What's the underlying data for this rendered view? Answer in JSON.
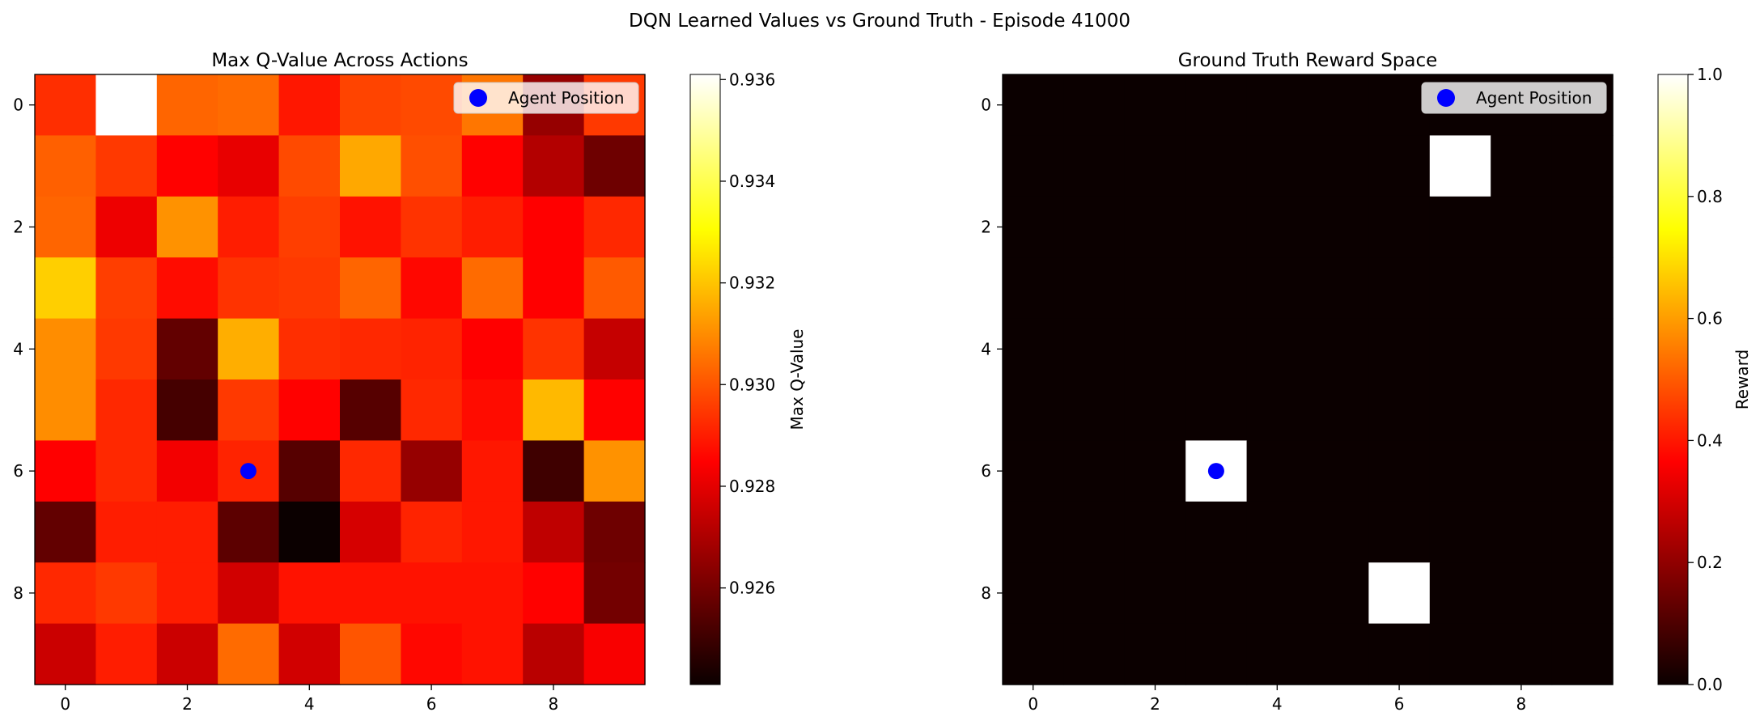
{
  "figure": {
    "suptitle": "DQN Learned Values vs Ground Truth - Episode 41000"
  },
  "chart_data": [
    {
      "type": "heatmap",
      "title": "Max Q-Value Across Actions",
      "colormap": "hot",
      "colorbar_label": "Max Q-Value",
      "vmin": 0.9241,
      "vmax": 0.9361,
      "colorbar_ticks": [
        0.926,
        0.928,
        0.93,
        0.932,
        0.934,
        0.936
      ],
      "colorbar_tick_labels": [
        "0.926",
        "0.928",
        "0.930",
        "0.932",
        "0.934",
        "0.936"
      ],
      "x_ticks": [
        0,
        2,
        4,
        6,
        8
      ],
      "y_ticks": [
        0,
        2,
        4,
        6,
        8
      ],
      "grid": false,
      "grid_size": [
        10,
        10
      ],
      "values": [
        [
          0.9293,
          0.9361,
          0.9303,
          0.9304,
          0.9289,
          0.9297,
          0.9298,
          0.9306,
          0.9265,
          0.9295
        ],
        [
          0.9302,
          0.9295,
          0.9285,
          0.9279,
          0.9298,
          0.9315,
          0.9299,
          0.9285,
          0.927,
          0.9258
        ],
        [
          0.9303,
          0.928,
          0.9311,
          0.929,
          0.9296,
          0.9288,
          0.9294,
          0.929,
          0.9283,
          0.9292
        ],
        [
          0.9322,
          0.9296,
          0.9287,
          0.9294,
          0.9295,
          0.9303,
          0.9286,
          0.9304,
          0.9284,
          0.9301
        ],
        [
          0.931,
          0.9295,
          0.9256,
          0.9316,
          0.9293,
          0.9292,
          0.9291,
          0.9283,
          0.9294,
          0.9273
        ],
        [
          0.931,
          0.9292,
          0.9251,
          0.9295,
          0.9285,
          0.9254,
          0.9292,
          0.9287,
          0.9318,
          0.9285
        ],
        [
          0.9283,
          0.9292,
          0.9281,
          0.9291,
          0.9254,
          0.9292,
          0.9265,
          0.9289,
          0.925,
          0.9311
        ],
        [
          0.9256,
          0.929,
          0.929,
          0.9255,
          0.9241,
          0.9276,
          0.9291,
          0.9289,
          0.9272,
          0.9258
        ],
        [
          0.9292,
          0.9295,
          0.929,
          0.9275,
          0.9288,
          0.9288,
          0.9288,
          0.9288,
          0.9285,
          0.9259
        ],
        [
          0.9274,
          0.929,
          0.9274,
          0.9304,
          0.9275,
          0.93,
          0.9286,
          0.9288,
          0.9271,
          0.9282
        ]
      ],
      "agent": {
        "x": 3,
        "y": 6,
        "color": "#0000ff"
      },
      "legend": {
        "label": "Agent Position",
        "loc": "upper right"
      }
    },
    {
      "type": "heatmap",
      "title": "Ground Truth Reward Space",
      "colormap": "hot",
      "colorbar_label": "Reward",
      "vmin": 0.0,
      "vmax": 1.0,
      "colorbar_ticks": [
        0.0,
        0.2,
        0.4,
        0.6,
        0.8,
        1.0
      ],
      "colorbar_tick_labels": [
        "0.0",
        "0.2",
        "0.4",
        "0.6",
        "0.8",
        "1.0"
      ],
      "x_ticks": [
        0,
        2,
        4,
        6,
        8
      ],
      "y_ticks": [
        0,
        2,
        4,
        6,
        8
      ],
      "grid": false,
      "grid_size": [
        10,
        10
      ],
      "values": [
        [
          0,
          0,
          0,
          0,
          0,
          0,
          0,
          0,
          0,
          0
        ],
        [
          0,
          0,
          0,
          0,
          0,
          0,
          0,
          1,
          0,
          0
        ],
        [
          0,
          0,
          0,
          0,
          0,
          0,
          0,
          0,
          0,
          0
        ],
        [
          0,
          0,
          0,
          0,
          0,
          0,
          0,
          0,
          0,
          0
        ],
        [
          0,
          0,
          0,
          0,
          0,
          0,
          0,
          0,
          0,
          0
        ],
        [
          0,
          0,
          0,
          0,
          0,
          0,
          0,
          0,
          0,
          0
        ],
        [
          0,
          0,
          0,
          1,
          0,
          0,
          0,
          0,
          0,
          0
        ],
        [
          0,
          0,
          0,
          0,
          0,
          0,
          0,
          0,
          0,
          0
        ],
        [
          0,
          0,
          0,
          0,
          0,
          0,
          1,
          0,
          0,
          0
        ],
        [
          0,
          0,
          0,
          0,
          0,
          0,
          0,
          0,
          0,
          0
        ]
      ],
      "agent": {
        "x": 3,
        "y": 6,
        "color": "#0000ff"
      },
      "legend": {
        "label": "Agent Position",
        "loc": "upper right"
      }
    }
  ]
}
